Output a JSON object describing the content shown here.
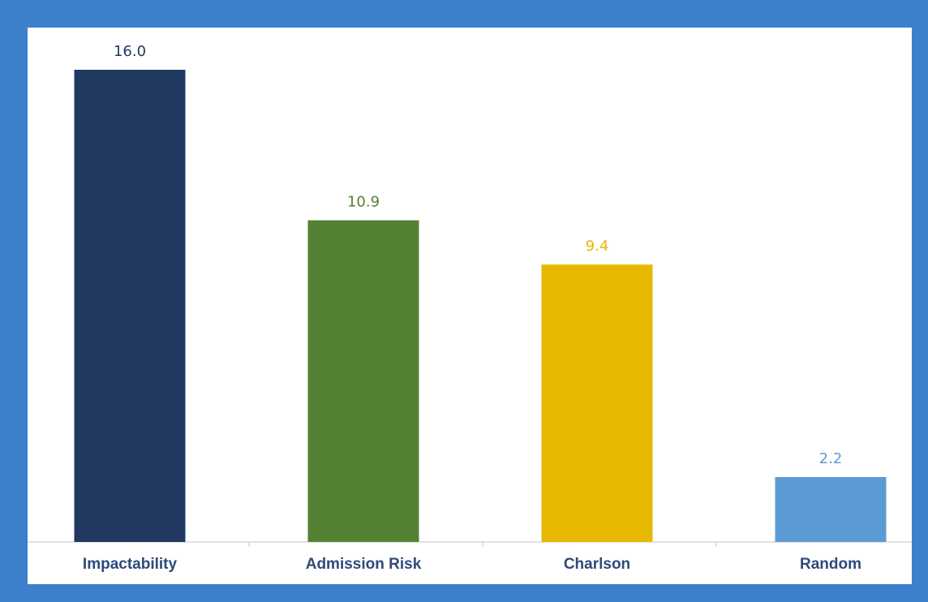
{
  "colors": {
    "frame": "#3d80cc",
    "panel": "#ffffff",
    "axis": "#d9d9d9",
    "category_text": "#2f4a7a"
  },
  "chart_data": {
    "type": "bar",
    "title": "",
    "xlabel": "",
    "ylabel": "",
    "ylim": [
      0,
      16.0
    ],
    "grid": false,
    "legend": "none",
    "categories": [
      "Impactability",
      "Admission Risk",
      "Charlson",
      "Random"
    ],
    "values": [
      16.0,
      10.9,
      9.4,
      2.2
    ],
    "value_labels": [
      "16.0",
      "10.9",
      "9.4",
      "2.2"
    ],
    "bar_colors": [
      "#213961",
      "#548235",
      "#e6b800",
      "#5b9bd5"
    ]
  }
}
